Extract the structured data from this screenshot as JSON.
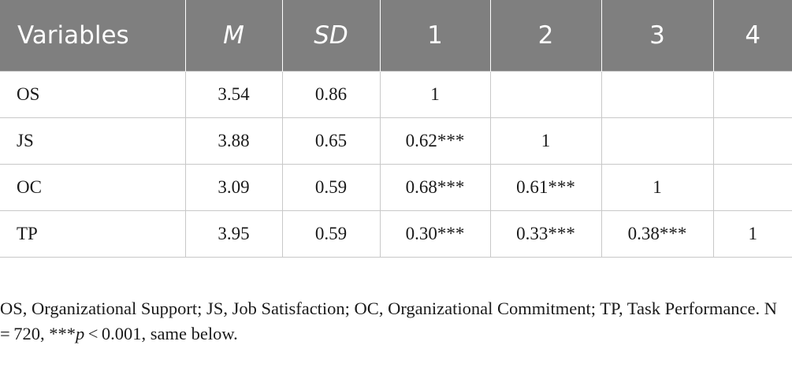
{
  "table": {
    "headers": [
      "Variables",
      "M",
      "SD",
      "1",
      "2",
      "3",
      "4"
    ],
    "rows": [
      {
        "variable": "OS",
        "m": "3.54",
        "sd": "0.86",
        "c1": "1",
        "c2": "",
        "c3": "",
        "c4": ""
      },
      {
        "variable": "JS",
        "m": "3.88",
        "sd": "0.65",
        "c1": "0.62***",
        "c2": "1",
        "c3": "",
        "c4": ""
      },
      {
        "variable": "OC",
        "m": "3.09",
        "sd": "0.59",
        "c1": "0.68***",
        "c2": "0.61***",
        "c3": "1",
        "c4": ""
      },
      {
        "variable": "TP",
        "m": "3.95",
        "sd": "0.59",
        "c1": "0.30***",
        "c2": "0.33***",
        "c3": "0.38***",
        "c4": "1"
      }
    ]
  },
  "note": {
    "abbreviations": "OS, Organizational Support; JS, Job Satisfaction; OC, Organizational Commitment; TP, Task Performance. N = 720, ***",
    "p_symbol": "p",
    "significance": " < 0.001, same below."
  }
}
